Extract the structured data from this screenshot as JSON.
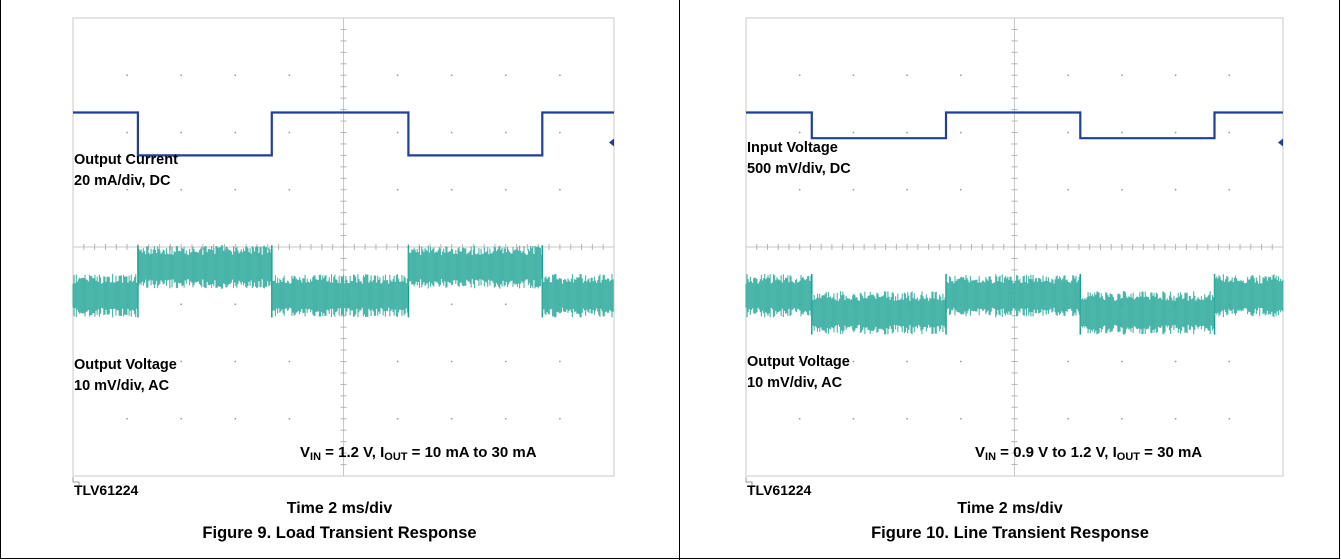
{
  "chart_data": [
    {
      "type": "line",
      "title": "Figure 9. Load Transient Response",
      "xlabel": "Time 2 ms/div",
      "device_label": "TLV61224",
      "conditions": {
        "v_label": "V",
        "v_sub": "IN",
        "v_value": " = 1.2 V, I",
        "i_sub": "OUT",
        "i_value": "  = 10 mA to 30 mA"
      },
      "grid": true,
      "x_unit": "div",
      "x_range": [
        0,
        10
      ],
      "y_range": [
        0,
        8
      ],
      "series": [
        {
          "name": "Output Current",
          "label_line1": "Output Current",
          "label_line2": "20 mA/div, DC",
          "color": "#1f3f99",
          "style": "thin",
          "steps": [
            [
              0,
              6.35
            ],
            [
              2.4,
              5.6
            ],
            [
              7.35,
              6.35
            ],
            [
              12.4,
              5.6
            ],
            [
              17.35,
              6.35
            ],
            [
              20,
              6.35
            ]
          ]
        },
        {
          "name": "Output Voltage",
          "label_line1": "Output Voltage",
          "label_line2": "10 mV/div, AC",
          "color": "#1a9e8f",
          "style": "noisy",
          "steps": [
            [
              0,
              3.15
            ],
            [
              2.4,
              3.65
            ],
            [
              7.35,
              3.15
            ],
            [
              12.4,
              3.65
            ],
            [
              17.35,
              3.15
            ],
            [
              20,
              3.15
            ]
          ]
        }
      ]
    },
    {
      "type": "line",
      "title": "Figure 10. Line Transient Response",
      "xlabel": "Time 2 ms/div",
      "device_label": "TLV61224",
      "conditions": {
        "v_label": "V",
        "v_sub": "IN",
        "v_value": " = 0.9 V to 1.2 V, I",
        "i_sub": "OUT",
        "i_value": "  =  30 mA"
      },
      "grid": true,
      "x_unit": "div",
      "x_range": [
        0,
        10
      ],
      "y_range": [
        0,
        8
      ],
      "series": [
        {
          "name": "Input Voltage",
          "label_line1": "Input Voltage",
          "label_line2": "500 mV/div, DC",
          "color": "#1f3f99",
          "style": "thin",
          "steps": [
            [
              0,
              6.35
            ],
            [
              2.45,
              5.9
            ],
            [
              7.45,
              6.35
            ],
            [
              12.45,
              5.9
            ],
            [
              17.45,
              6.35
            ],
            [
              20,
              6.35
            ]
          ]
        },
        {
          "name": "Output Voltage",
          "label_line1": "Output Voltage",
          "label_line2": "10 mV/div, AC",
          "color": "#1a9e8f",
          "style": "noisy",
          "steps": [
            [
              0,
              3.15
            ],
            [
              2.45,
              2.85
            ],
            [
              7.45,
              3.15
            ],
            [
              12.45,
              2.85
            ],
            [
              17.45,
              3.15
            ],
            [
              20,
              3.15
            ]
          ]
        }
      ]
    }
  ]
}
